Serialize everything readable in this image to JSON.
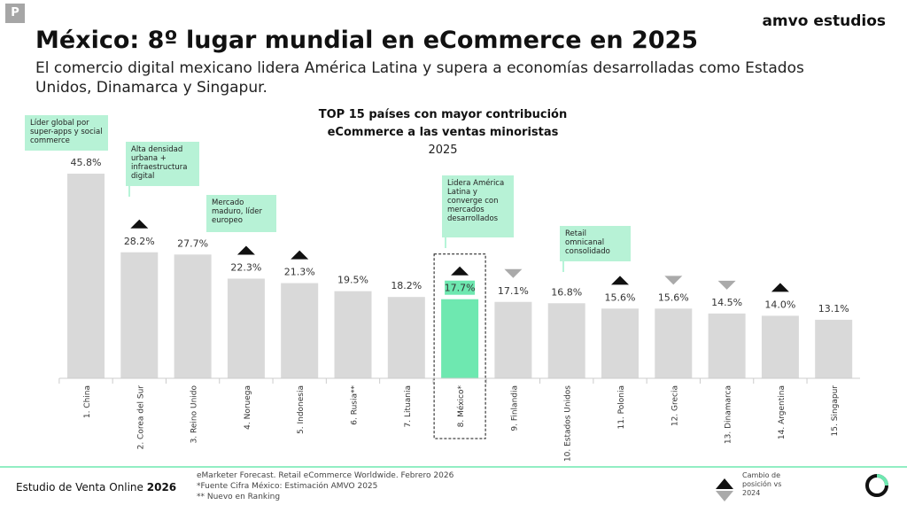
{
  "header": {
    "badge": "P",
    "logo": "amvo estudios",
    "title": "México: 8º lugar mundial en eCommerce en 2025",
    "subtitle": "El comercio digital mexicano lidera América Latina y supera a economías desarrolladas como Estados Unidos, Dinamarca y Singapur."
  },
  "chart_data": {
    "type": "bar",
    "title": "TOP 15 países con mayor contribución eCommerce a las ventas minoristas",
    "subtitle": "2025",
    "categories": [
      "1. China",
      "2. Corea del Sur",
      "3. Reino Unido",
      "4. Noruega",
      "5. Indonesia",
      "6. Rusia**",
      "7. Lituania",
      "8. México*",
      "9. Finlandia",
      "10. Estados Unidos",
      "11. Polonia",
      "12. Grecia",
      "13. Dinamarca",
      "14. Argentina",
      "15. Singapur"
    ],
    "values": [
      45.8,
      28.2,
      27.7,
      22.3,
      21.3,
      19.5,
      18.2,
      17.7,
      17.1,
      16.8,
      15.6,
      15.6,
      14.5,
      14.0,
      13.1
    ],
    "value_labels": [
      "45.8%",
      "28.2%",
      "27.7%",
      "22.3%",
      "21.3%",
      "19.5%",
      "18.2%",
      "17.7%",
      "17.1%",
      "16.8%",
      "15.6%",
      "15.6%",
      "14.5%",
      "14.0%",
      "13.1%"
    ],
    "colors": [
      "#d9d9d9",
      "#d9d9d9",
      "#d9d9d9",
      "#d9d9d9",
      "#d9d9d9",
      "#d9d9d9",
      "#d9d9d9",
      "#6ee8b0",
      "#d9d9d9",
      "#d9d9d9",
      "#d9d9d9",
      "#d9d9d9",
      "#d9d9d9",
      "#d9d9d9",
      "#d9d9d9"
    ],
    "rank_change": [
      "none",
      "up",
      "none",
      "up",
      "up",
      "none",
      "none",
      "up",
      "down",
      "none",
      "up",
      "down",
      "down",
      "up",
      "none"
    ],
    "annotations": [
      {
        "category": 0,
        "text": "Líder global por super-apps y social commerce"
      },
      {
        "category": 1,
        "text": "Alta densidad urbana + infraestructura digital"
      },
      {
        "category": 2,
        "text": "Mercado maduro, líder europeo"
      },
      {
        "category": 7,
        "text": "Lidera América Latina y converge con mercados desarrollados"
      },
      {
        "category": 9,
        "text": "Retail omnicanal consolidado"
      }
    ],
    "legend": "Cambio de posición vs 2024"
  },
  "footer": {
    "study": "Estudio de Venta Online",
    "year": "2026",
    "notes": [
      "eMarketer Forecast. Retail eCommerce Worldwide. Febrero 2026",
      "*Fuente Cifra México: Estimación AMVO 2025",
      "** Nuevo en Ranking"
    ]
  }
}
